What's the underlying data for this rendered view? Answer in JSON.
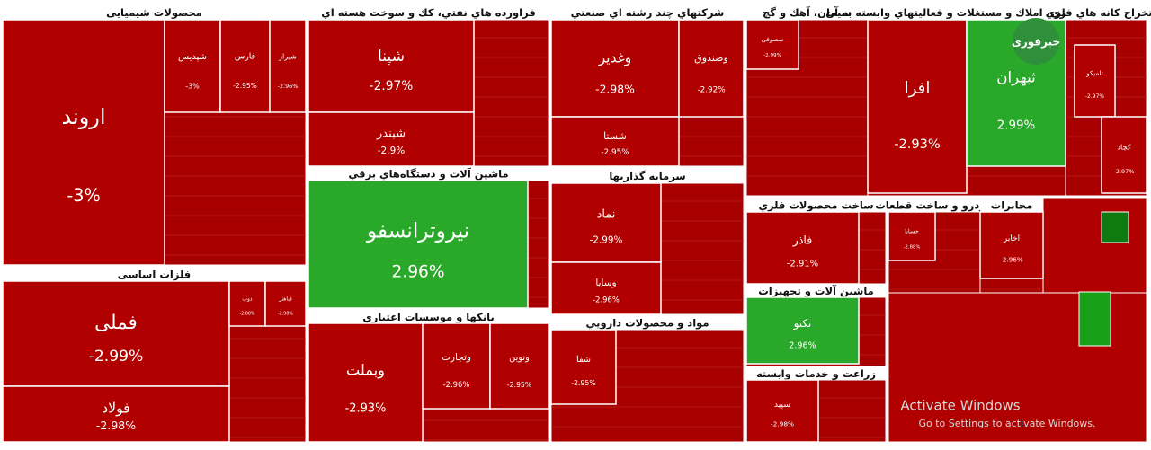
{
  "sectors": [
    {
      "title": "محصولات شیمیایی",
      "tiles": [
        {
          "name": "اروند",
          "change": "-3%"
        },
        {
          "name": "شپدیس",
          "change": "-3%"
        },
        {
          "name": "فارس",
          "change": "-2.95%"
        },
        {
          "name": "شیراز",
          "change": "-2.96%"
        }
      ]
    },
    {
      "title": "فلزات اساسی",
      "tiles": [
        {
          "name": "فملی",
          "change": "-2.99%"
        },
        {
          "name": "فولاد",
          "change": "-2.98%"
        },
        {
          "name": "ذوب",
          "change": "-2.88%"
        },
        {
          "name": "فباهنر",
          "change": "-2.98%"
        }
      ]
    },
    {
      "title": "فراورده هاي نفتي، كك و سوخت هسته اي",
      "tiles": [
        {
          "name": "شپنا",
          "change": "-2.97%"
        },
        {
          "name": "شبندر",
          "change": "-2.9%"
        }
      ]
    },
    {
      "title": "ماشين آلات و دستگاه‌هاي برقي",
      "tiles": [
        {
          "name": "نیروترانسفو",
          "change": "2.96%"
        }
      ]
    },
    {
      "title": "بانكها و موسسات اعتباري",
      "tiles": [
        {
          "name": "وبملت",
          "change": "-2.93%"
        },
        {
          "name": "وتجارت",
          "change": "-2.96%"
        },
        {
          "name": "ونوین",
          "change": "-2.95%"
        }
      ]
    },
    {
      "title": "شركتهاي چند رشته اي صنعتي",
      "tiles": [
        {
          "name": "وغدیر",
          "change": "-2.98%"
        },
        {
          "name": "وصندوق",
          "change": "-2.92%"
        },
        {
          "name": "شستا",
          "change": "-2.95%"
        }
      ]
    },
    {
      "title": "سرمايه گذاريها",
      "tiles": [
        {
          "name": "نماد",
          "change": "-2.99%"
        },
        {
          "name": "وسایا",
          "change": "-2.96%"
        }
      ]
    },
    {
      "title": "مواد و محصولات دارويي",
      "tiles": [
        {
          "name": "شفا",
          "change": "-2.95%"
        }
      ]
    },
    {
      "title": "سيمان، آهك و گچ",
      "tiles": [
        {
          "name": "سصوفی",
          "change": "-2.99%"
        }
      ]
    },
    {
      "title": "انبوه سازي، املاك و مستغلات و فعاليتهاي وابسته به آن",
      "tiles": [
        {
          "name": "افرا",
          "change": "-2.93%"
        },
        {
          "name": "ثبهران",
          "change": "2.99%"
        }
      ]
    },
    {
      "title": "استخراج كانه هاي فلزي",
      "tiles": [
        {
          "name": "تامیکو",
          "change": "-2.97%"
        },
        {
          "name": "کچاد",
          "change": "-2.97%"
        }
      ]
    },
    {
      "title": "ساخت محصولات فلزي",
      "tiles": [
        {
          "name": "فاذر",
          "change": "-2.91%"
        }
      ]
    },
    {
      "title": "ماشين آلات و تجهيزات",
      "tiles": [
        {
          "name": "تکنو",
          "change": "2.96%"
        }
      ]
    },
    {
      "title": "زراعت و خدمات وابسته",
      "tiles": [
        {
          "name": "سپید",
          "change": "-2.98%"
        }
      ]
    },
    {
      "title": "خودرو و ساخت قطعات",
      "tiles": [
        {
          "name": "خسایا",
          "change": "-2.88%"
        }
      ]
    },
    {
      "title": "مخابرات",
      "tiles": [
        {
          "name": "اخابر",
          "change": "-2.96%"
        }
      ]
    }
  ],
  "logo": "خبرفوری",
  "watermark": {
    "title": "Activate Windows",
    "subtitle": "Go to Settings to activate Windows."
  }
}
